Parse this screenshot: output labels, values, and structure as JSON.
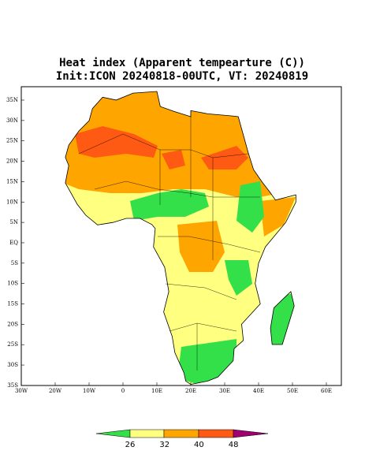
{
  "title": [
    "Heat index (Apparent tempearture (C))",
    "Init:ICON 20240818-00UTC, VT: 20240819"
  ],
  "map": {
    "lat_labels": [
      "35N",
      "30N",
      "25N",
      "20N",
      "15N",
      "10N",
      "5N",
      "EQ",
      "5S",
      "10S",
      "15S",
      "20S",
      "25S",
      "30S",
      "35S"
    ],
    "lon_labels": [
      "30W",
      "20W",
      "10W",
      "0",
      "10E",
      "20E",
      "30E",
      "40E",
      "50E",
      "60E"
    ]
  },
  "colorbar": {
    "labels": [
      "26",
      "32",
      "40",
      "48"
    ]
  }
}
